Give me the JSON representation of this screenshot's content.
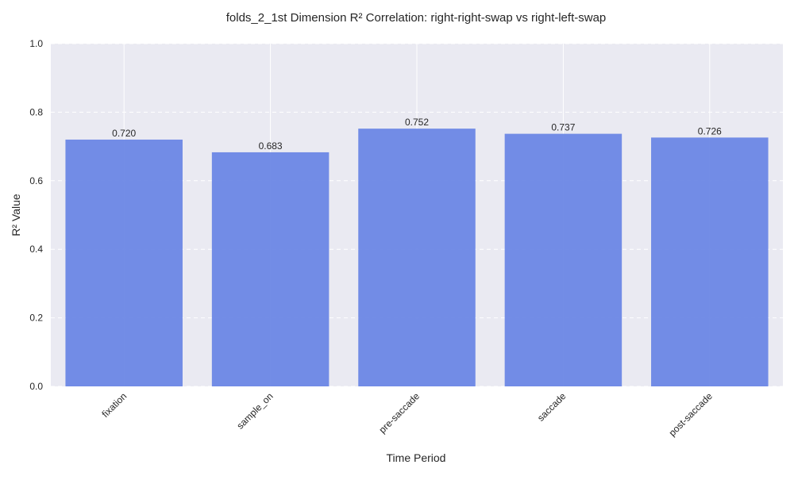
{
  "chart_data": {
    "type": "bar",
    "title": "folds_2_1st Dimension R² Correlation: right-right-swap vs right-left-swap",
    "xlabel": "Time Period",
    "ylabel": "R² Value",
    "categories": [
      "fixation",
      "sample_on",
      "pre-saccade",
      "saccade",
      "post-saccade"
    ],
    "values": [
      0.72,
      0.683,
      0.752,
      0.737,
      0.726
    ],
    "value_labels": [
      "0.720",
      "0.683",
      "0.752",
      "0.737",
      "0.726"
    ],
    "ylim": [
      0,
      1.0
    ],
    "yticks": [
      0.0,
      0.2,
      0.4,
      0.6,
      0.8,
      1.0
    ],
    "ytick_labels": [
      "0.0",
      "0.2",
      "0.4",
      "0.6",
      "0.8",
      "1.0"
    ],
    "grid": true,
    "colors": {
      "bar": "#6b87e5",
      "plot_background": "#eaeaf2",
      "grid_line": "#ffffff",
      "text": "#262626"
    }
  }
}
